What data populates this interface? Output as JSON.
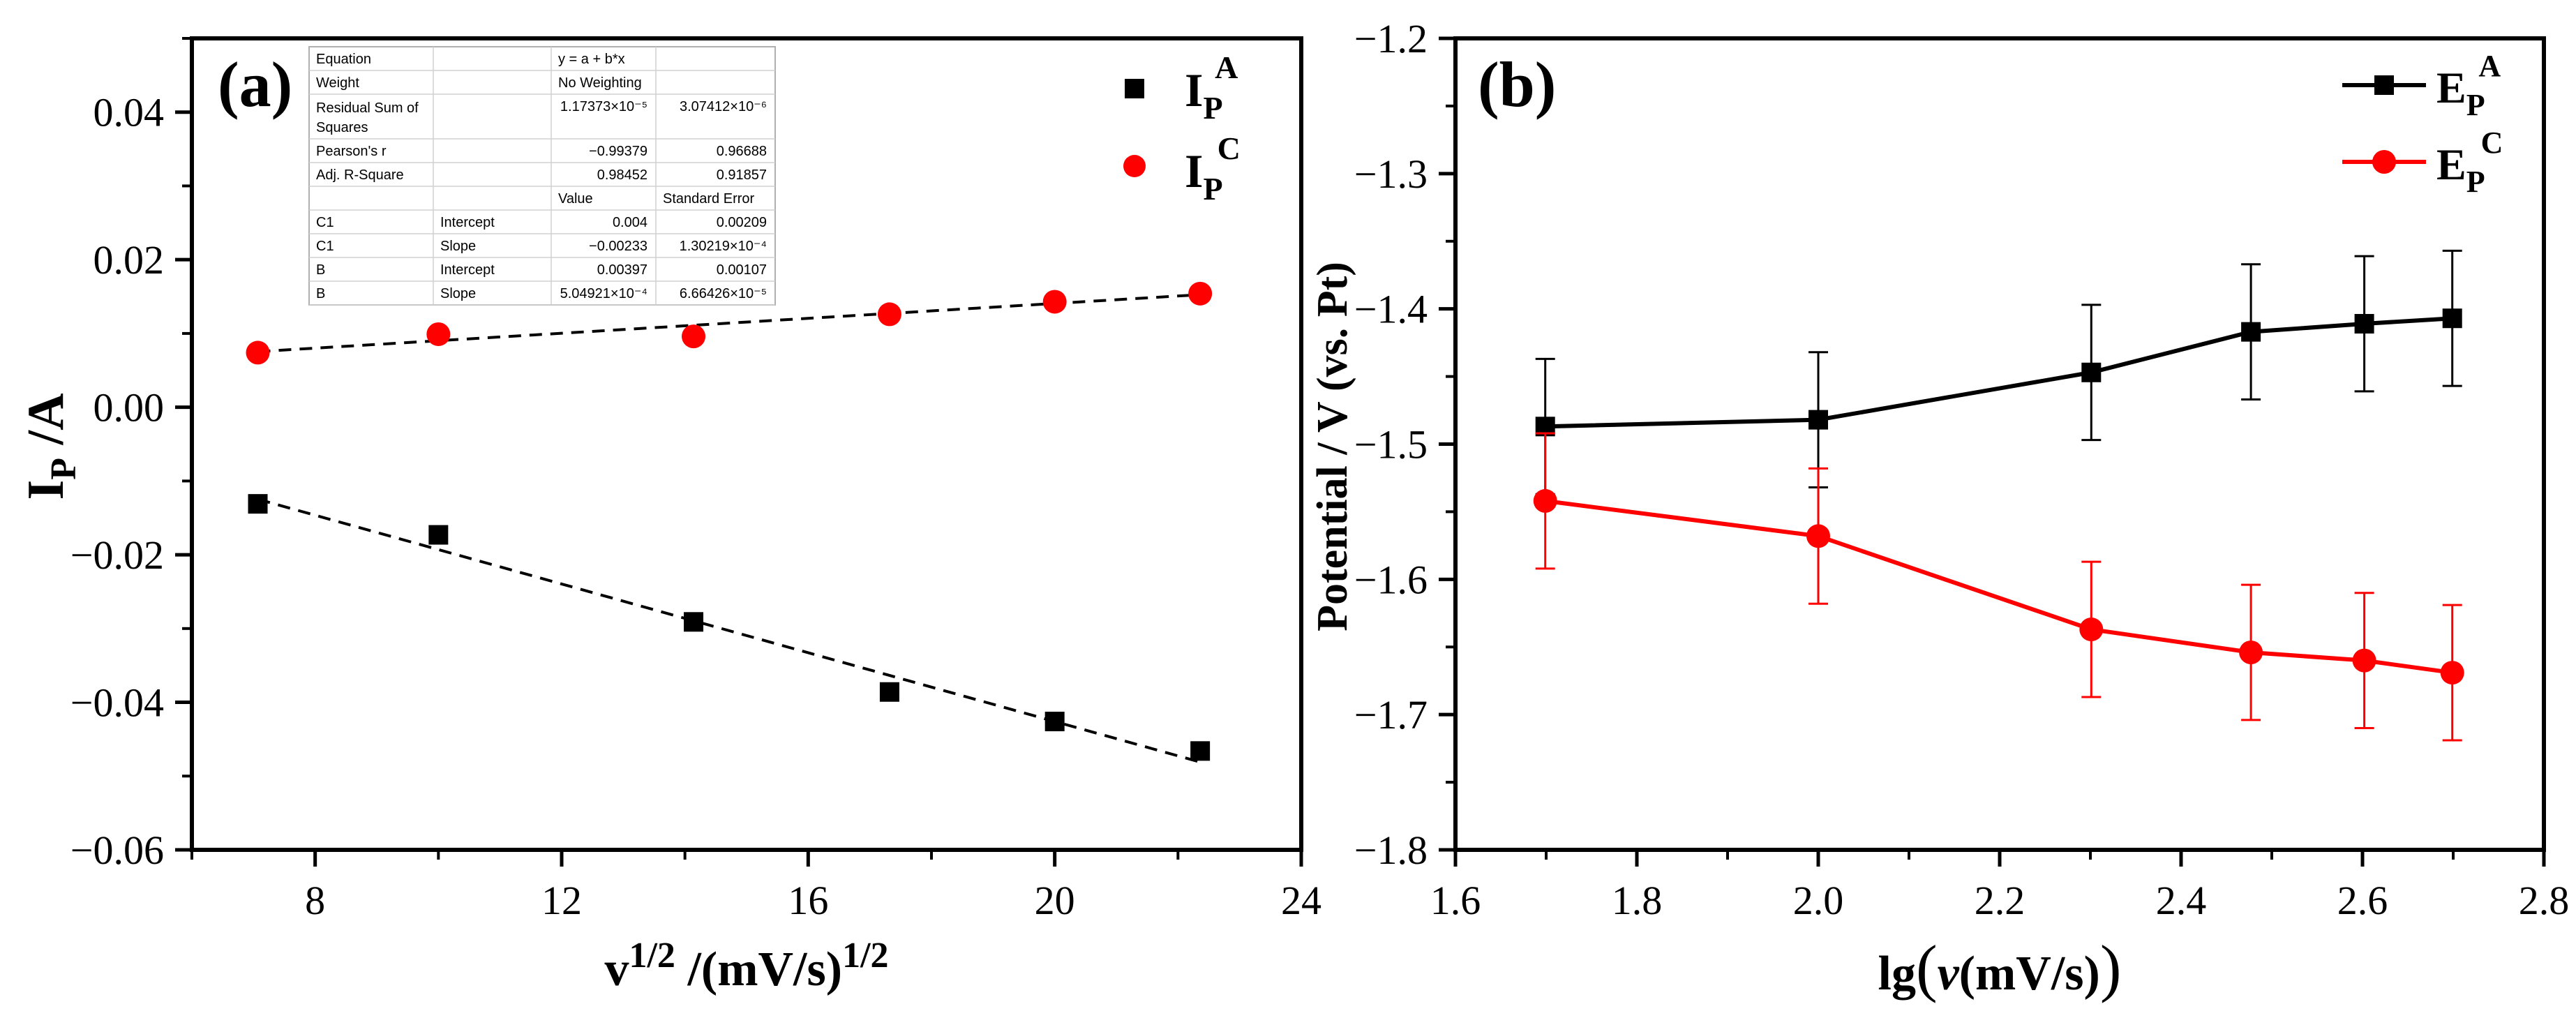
{
  "chart_data": [
    {
      "panel_label": "(a)",
      "type": "scatter",
      "xlabel_base": "v",
      "xlabel_sup": "1/2",
      "xlabel_mid": " /(mV/s)",
      "xlabel_sup2": "1/2",
      "ylabel_base": "I",
      "ylabel_sub": "P",
      "ylabel_rest": " /A",
      "xlim": [
        6,
        24
      ],
      "ylim": [
        -0.06,
        0.05
      ],
      "xticks": [
        8,
        12,
        16,
        20,
        24
      ],
      "xtick_labels": [
        "8",
        "12",
        "16",
        "20",
        "24"
      ],
      "yticks": [
        -0.06,
        -0.04,
        -0.02,
        0.0,
        0.02,
        0.04
      ],
      "ytick_labels": [
        "−0.06",
        "−0.04",
        "−0.02",
        "0.00",
        "0.02",
        "0.04"
      ],
      "series": [
        {
          "name_base": "I",
          "name_sub": "P",
          "name_sup": "A",
          "marker": "square",
          "color": "#000000",
          "x": [
            7.07,
            10.0,
            14.14,
            17.32,
            20.0,
            22.36
          ],
          "y": [
            -0.0131,
            -0.0173,
            -0.0291,
            -0.0386,
            -0.0426,
            -0.0466
          ],
          "fit": {
            "intercept": 0.004,
            "slope": -0.00233
          }
        },
        {
          "name_base": "I",
          "name_sub": "P",
          "name_sup": "C",
          "marker": "circle",
          "color": "#ff0000",
          "x": [
            7.07,
            10.0,
            14.14,
            17.32,
            20.0,
            22.36
          ],
          "y": [
            0.0074,
            0.0099,
            0.0096,
            0.0126,
            0.0143,
            0.0154
          ],
          "fit": {
            "intercept": 0.00397,
            "slope": 0.000504921
          }
        }
      ],
      "fit_table": {
        "rows": [
          [
            "Equation",
            "",
            "y = a + b*x",
            ""
          ],
          [
            "Weight",
            "",
            "No Weighting",
            ""
          ],
          [
            "Residual Sum of Squares",
            "",
            "1.17373×10⁻⁵",
            "3.07412×10⁻⁶"
          ],
          [
            "Pearson's r",
            "",
            "−0.99379",
            "0.96688"
          ],
          [
            "Adj. R-Square",
            "",
            "0.98452",
            "0.91857"
          ],
          [
            "",
            "",
            "Value",
            "Standard Error"
          ],
          [
            "C1",
            "Intercept",
            "0.004",
            "0.00209"
          ],
          [
            "C1",
            "Slope",
            "−0.00233",
            "1.30219×10⁻⁴"
          ],
          [
            "B",
            "Intercept",
            "0.00397",
            "0.00107"
          ],
          [
            "B",
            "Slope",
            "5.04921×10⁻⁴",
            "6.66426×10⁻⁵"
          ]
        ]
      }
    },
    {
      "panel_label": "(b)",
      "type": "line",
      "xlabel_prefix": "lg",
      "xlabel_v": "v",
      "xlabel_unit": "(mV/s)",
      "ylabel": "Potential / V (vs. Pt)",
      "xlim": [
        1.6,
        2.8
      ],
      "ylim": [
        -1.8,
        -1.2
      ],
      "xticks": [
        1.6,
        1.8,
        2.0,
        2.2,
        2.4,
        2.6,
        2.8
      ],
      "xtick_labels": [
        "1.6",
        "1.8",
        "2.0",
        "2.2",
        "2.4",
        "2.6",
        "2.8"
      ],
      "yticks": [
        -1.8,
        -1.7,
        -1.6,
        -1.5,
        -1.4,
        -1.3,
        -1.2
      ],
      "ytick_labels": [
        "−1.8",
        "−1.7",
        "−1.6",
        "−1.5",
        "−1.4",
        "−1.3",
        "−1.2"
      ],
      "series": [
        {
          "name_base": "E",
          "name_sub": "P",
          "name_sup": "A",
          "marker": "square",
          "color": "#000000",
          "x": [
            1.699,
            2.0,
            2.301,
            2.477,
            2.602,
            2.699
          ],
          "y": [
            -1.487,
            -1.482,
            -1.447,
            -1.417,
            -1.411,
            -1.407
          ],
          "err": [
            0.05,
            0.05,
            0.05,
            0.05,
            0.05,
            0.05
          ]
        },
        {
          "name_base": "E",
          "name_sub": "P",
          "name_sup": "C",
          "marker": "circle",
          "color": "#ff0000",
          "x": [
            1.699,
            2.0,
            2.301,
            2.477,
            2.602,
            2.699
          ],
          "y": [
            -1.542,
            -1.568,
            -1.637,
            -1.654,
            -1.66,
            -1.669
          ],
          "err": [
            0.05,
            0.05,
            0.05,
            0.05,
            0.05,
            0.05
          ]
        }
      ]
    }
  ]
}
